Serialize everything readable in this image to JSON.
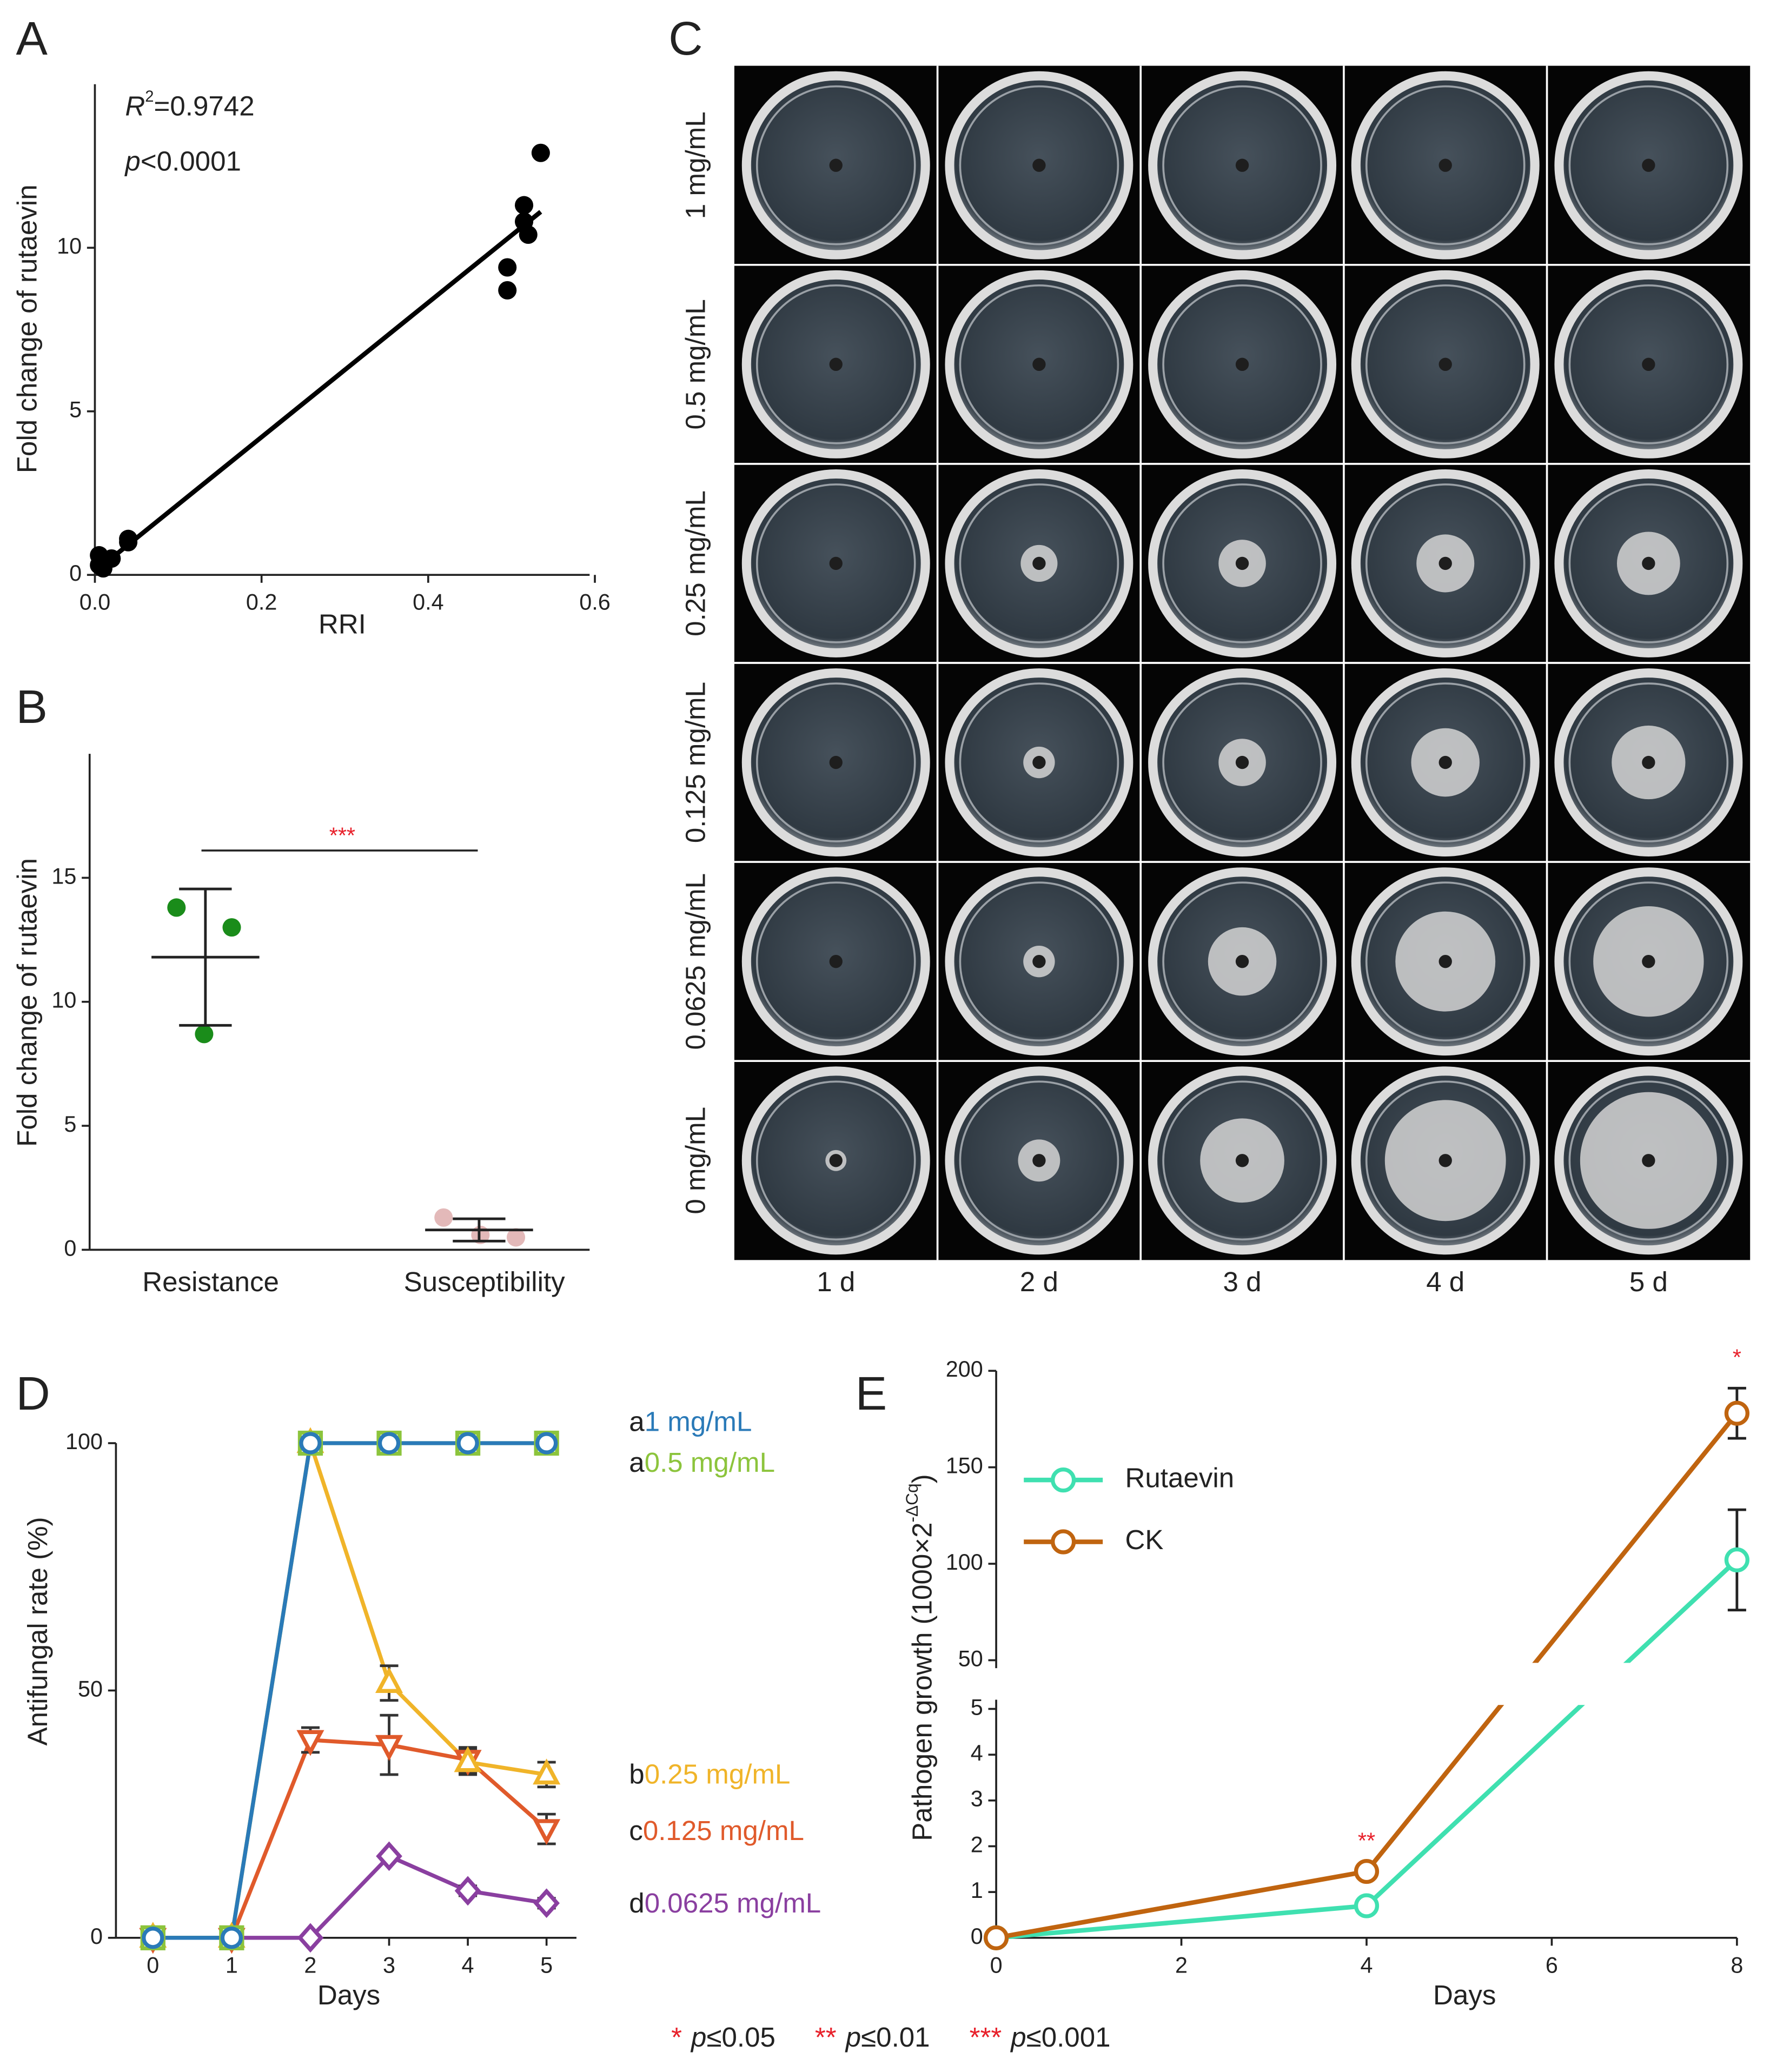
{
  "chart_data": [
    {
      "type": "scatter",
      "label": "A",
      "xlabel": "RRI",
      "ylabel": "Fold change of rutaevin",
      "xlim": [
        0,
        0.6
      ],
      "ylim": [
        0,
        15
      ],
      "xticks": [
        {
          "value": 0,
          "label": "0.0"
        },
        0.2,
        0.4,
        0.6
      ],
      "yticks": [
        0,
        5,
        10
      ],
      "series": [
        {
          "color": "#000000",
          "x": [
            0.005,
            0.005,
            0.01,
            0.02,
            0.04,
            0.04,
            0.495,
            0.495,
            0.515,
            0.515,
            0.52,
            0.535
          ],
          "values": [
            0.3,
            0.6,
            0.2,
            0.5,
            1.0,
            1.1,
            9.4,
            8.7,
            11.3,
            10.8,
            10.4,
            12.9
          ]
        }
      ],
      "fit": {
        "x": [
          0,
          0.535
        ],
        "values": [
          0.1,
          11.1
        ]
      },
      "r2_symbol": "R",
      "r2_sup": "2",
      "r2_value": "=0.9742",
      "p_symbol": "p",
      "p_value": "<0.0001"
    },
    {
      "type": "dotplot",
      "label": "B",
      "ylabel": "Fold change of rutaevin",
      "categories": [
        "Resistance",
        "Susceptibility"
      ],
      "colors": [
        "#1a8c1a",
        "#e3b9b9"
      ],
      "ylim": [
        0,
        20
      ],
      "yticks": [
        0,
        5,
        10,
        15
      ],
      "points": [
        [
          13.8,
          13.0,
          8.7
        ],
        [
          1.3,
          0.6,
          0.5
        ]
      ],
      "mean": [
        11.8,
        0.8
      ],
      "sd": [
        2.75,
        0.45
      ],
      "significance": {
        "label": "***",
        "value": 16.1,
        "color": "#e8202a"
      }
    },
    {
      "type": "line",
      "label": "D",
      "xlabel": "Days",
      "ylabel": "Antifungal rate (%)",
      "xlim": [
        -0.47,
        5.38
      ],
      "ylim": [
        0,
        100
      ],
      "xticks": [
        0,
        1,
        2,
        3,
        4,
        5
      ],
      "yticks": [
        0,
        50,
        100
      ],
      "x": [
        0,
        1,
        2,
        3,
        4,
        5
      ],
      "series": [
        {
          "name": "1 mg/mL",
          "group": "a",
          "color": "#2a7ab8",
          "marker": "circle",
          "values": [
            0,
            0,
            100,
            100,
            100,
            100
          ],
          "errors": [
            0,
            0,
            0,
            0,
            0,
            0
          ]
        },
        {
          "name": "0.5 mg/mL",
          "group": "a",
          "color": "#8cc43c",
          "marker": "square",
          "values": [
            0,
            0,
            100,
            100,
            100,
            100
          ],
          "errors": [
            0,
            0,
            0,
            0,
            0,
            0
          ]
        },
        {
          "name": "0.25 mg/mL",
          "group": "b",
          "color": "#f0b429",
          "marker": "triangle-up",
          "values": [
            0,
            0,
            100,
            51.5,
            35.5,
            33
          ],
          "errors": [
            0,
            0,
            0,
            3.5,
            2.5,
            2.5
          ]
        },
        {
          "name": "0.125 mg/mL",
          "group": "c",
          "color": "#e05a2b",
          "marker": "triangle-down",
          "values": [
            0,
            0,
            40,
            39,
            36,
            22
          ],
          "errors": [
            0,
            0,
            2.5,
            6,
            2.5,
            3
          ]
        },
        {
          "name": "0.0625 mg/mL",
          "group": "d",
          "color": "#8a3fa0",
          "marker": "diamond",
          "values": [
            0,
            0,
            0,
            16.5,
            9.5,
            7
          ],
          "errors": [
            0,
            0,
            0,
            0.5,
            1,
            1
          ]
        }
      ]
    },
    {
      "type": "broken_line",
      "label": "E",
      "xlabel": "Days",
      "ylabel": "Pathogen growth (1000×2",
      "ylabel_sup": "-ΔCq",
      "ylabel_end": ")",
      "xlim": [
        0,
        8
      ],
      "xticks": [
        0,
        2,
        4,
        6,
        8
      ],
      "ylim_lower": [
        0,
        5
      ],
      "yticks_lower": [
        0,
        1,
        2,
        3,
        4,
        5
      ],
      "ylim_upper": [
        50,
        200
      ],
      "yticks_upper": [
        50,
        100,
        150,
        200
      ],
      "x": [
        0,
        4,
        8
      ],
      "series": [
        {
          "name": "Rutaevin",
          "color": "#3fe0b0",
          "values": [
            0,
            0.7,
            102
          ],
          "errors": [
            0,
            0,
            26
          ]
        },
        {
          "name": "CK",
          "color": "#c0640f",
          "values": [
            0,
            1.45,
            178
          ],
          "errors": [
            0,
            0,
            13
          ]
        }
      ],
      "significance": [
        {
          "x": 4,
          "label": "**"
        },
        {
          "x": 8,
          "label": "*"
        }
      ],
      "significance_color": "#e8202a"
    }
  ],
  "image_grid": {
    "label": "C",
    "rows": [
      "1 mg/mL",
      "0.5 mg/mL",
      "0.25 mg/mL",
      "0.125 mg/mL",
      "0.0625 mg/mL",
      "0 mg/mL"
    ],
    "columns": [
      "1 d",
      "2 d",
      "3 d",
      "4 d",
      "5 d"
    ]
  },
  "footnote": [
    {
      "stars": "*",
      "p": "p",
      "text": "≤0.05"
    },
    {
      "stars": "**",
      "p": "p",
      "text": "≤0.01"
    },
    {
      "stars": "***",
      "p": "p",
      "text": "≤0.001"
    }
  ]
}
